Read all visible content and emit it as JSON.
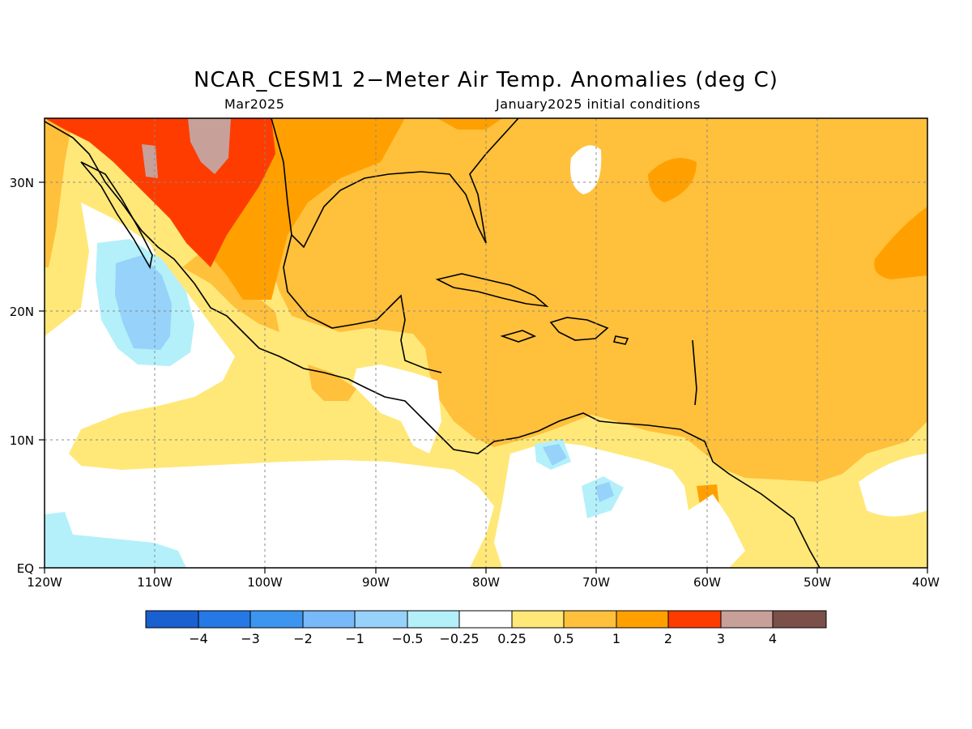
{
  "title": "NCAR_CESM1 2−Meter Air Temp. Anomalies (deg C)",
  "subtitle_left": "Mar2025",
  "subtitle_right": "January2025 initial conditions",
  "lat_labels": [
    "30N",
    "20N",
    "10N",
    "EQ"
  ],
  "lon_labels": [
    "120W",
    "110W",
    "100W",
    "90W",
    "80W",
    "70W",
    "60W",
    "50W",
    "40W"
  ],
  "colorbar": {
    "colors": [
      "#1960d0",
      "#2678e6",
      "#3c96f0",
      "#78b9fa",
      "#96d2fa",
      "#b4f0fa",
      "#ffffff",
      "#ffe878",
      "#ffc03c",
      "#ffa000",
      "#ff3c00",
      "#c8a09a",
      "#7a5048"
    ],
    "labels": [
      "−4",
      "−3",
      "−2",
      "−1",
      "−0.5",
      "−0.25",
      "0.25",
      "0.5",
      "1",
      "2",
      "3",
      "4"
    ]
  }
}
